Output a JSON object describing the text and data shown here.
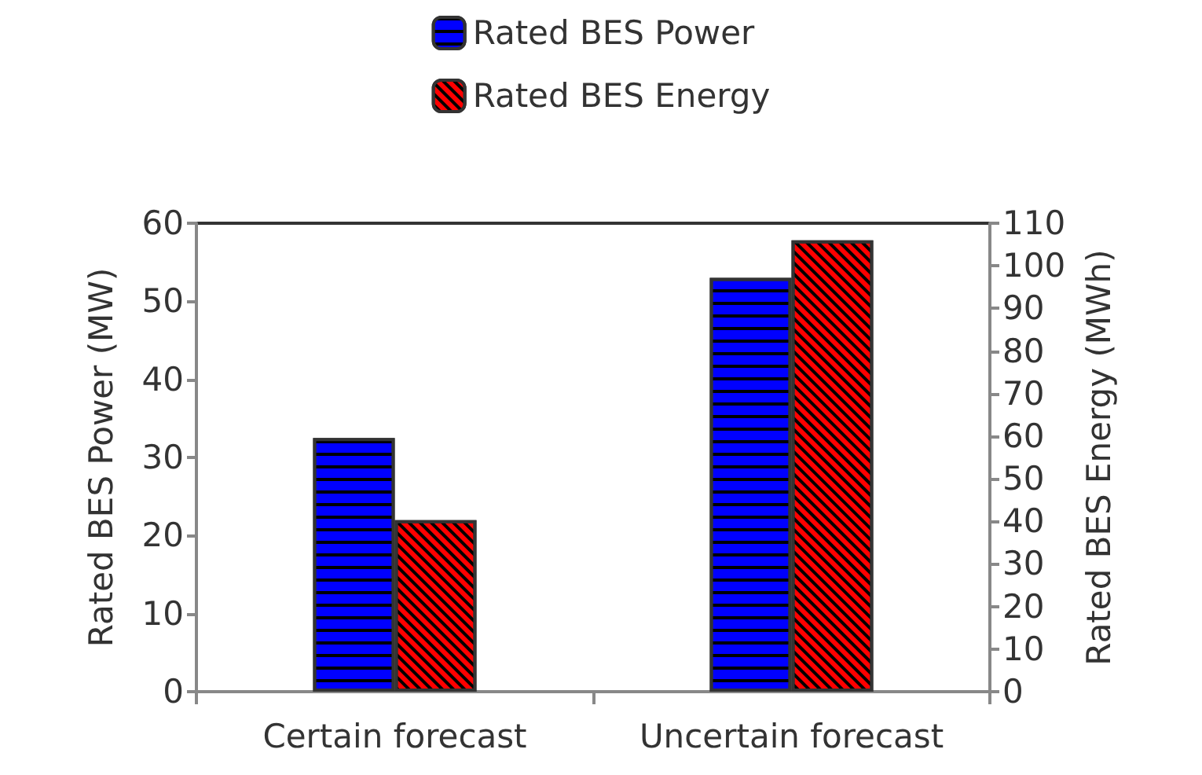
{
  "chart_data": {
    "type": "bar",
    "categories": [
      "Certain forecast",
      "Uncertain forecast"
    ],
    "series": [
      {
        "name": "Rated BES Power",
        "color": "#0000ff",
        "values": [
          32.5,
          53
        ]
      },
      {
        "name": "Rated BES Energy",
        "color": "#ff0000",
        "values": [
          40.3,
          106
        ],
        "axis": "y2"
      }
    ],
    "ylabel": "Rated BES Power (MW)",
    "y2label": "Rated BES Energy (MWh)",
    "ylim": [
      0,
      60
    ],
    "yticks": [
      0,
      10,
      20,
      30,
      40,
      50,
      60
    ],
    "y2lim": [
      0,
      110
    ],
    "y2ticks": [
      0,
      10,
      20,
      30,
      40,
      50,
      60,
      70,
      80,
      90,
      100,
      110
    ],
    "grid": false,
    "legend": "top"
  }
}
